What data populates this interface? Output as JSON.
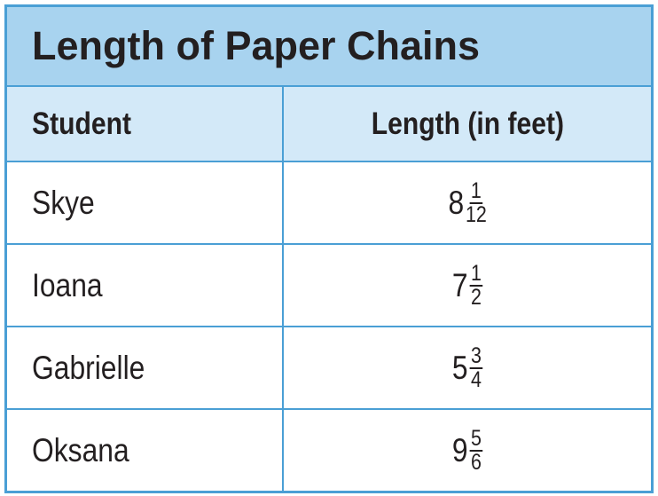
{
  "table": {
    "title": "Length of Paper Chains",
    "header": [
      "Student",
      "Length (in feet)"
    ],
    "rows": [
      {
        "student": "Skye",
        "whole": 8,
        "numerator": 1,
        "denominator": 12
      },
      {
        "student": "Ioana",
        "whole": 7,
        "numerator": 1,
        "denominator": 2
      },
      {
        "student": "Gabrielle",
        "whole": 5,
        "numerator": 3,
        "denominator": 4
      },
      {
        "student": "Oksana",
        "whole": 9,
        "numerator": 5,
        "denominator": 6
      }
    ]
  }
}
